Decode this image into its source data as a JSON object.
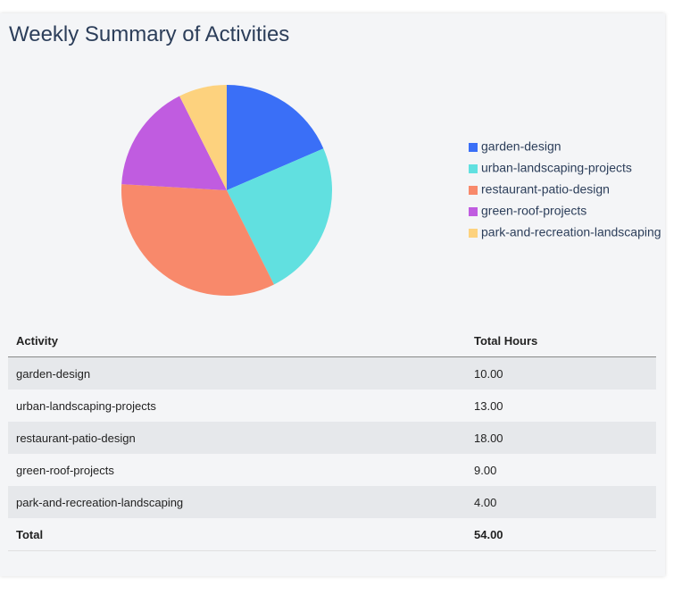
{
  "chart_data": {
    "type": "pie",
    "title": "Weekly Summary of Activities",
    "categories": [
      "garden-design",
      "urban-landscaping-projects",
      "restaurant-patio-design",
      "green-roof-projects",
      "park-and-recreation-landscaping"
    ],
    "values": [
      10,
      13,
      18,
      9,
      4
    ],
    "colors": [
      "#3a6ff7",
      "#61e0e0",
      "#f8896b",
      "#c05ce0",
      "#fdd27e"
    ],
    "legend": "right"
  },
  "table": {
    "columns": [
      "Activity",
      "Total Hours"
    ],
    "rows": [
      [
        "garden-design",
        "10.00"
      ],
      [
        "urban-landscaping-projects",
        "13.00"
      ],
      [
        "restaurant-patio-design",
        "18.00"
      ],
      [
        "green-roof-projects",
        "9.00"
      ],
      [
        "park-and-recreation-landscaping",
        "4.00"
      ]
    ],
    "total": [
      "Total",
      "54.00"
    ]
  }
}
